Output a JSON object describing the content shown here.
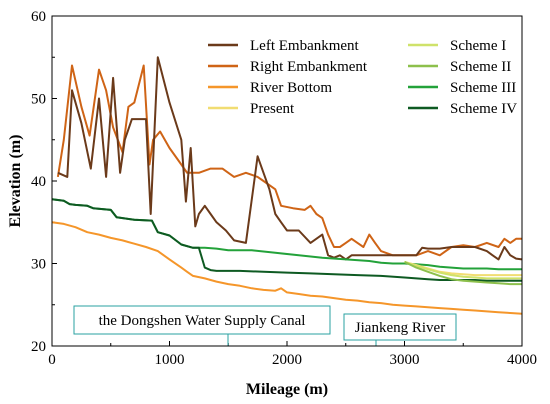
{
  "chart_data": {
    "type": "line",
    "xlabel": "Mileage (m)",
    "ylabel": "Elevation (m)",
    "xlim": [
      0,
      4000
    ],
    "ylim": [
      20,
      60
    ],
    "xticks": [
      0,
      1000,
      2000,
      3000,
      4000
    ],
    "yticks": [
      20,
      30,
      40,
      50,
      60
    ],
    "legend": "top-right, two columns",
    "series": [
      {
        "name": "Left Embankment",
        "color": "#6b3a1a",
        "x": [
          50,
          130,
          170,
          250,
          330,
          400,
          460,
          520,
          580,
          620,
          680,
          750,
          800,
          840,
          900,
          1000,
          1100,
          1140,
          1180,
          1220,
          1250,
          1300,
          1350,
          1400,
          1480,
          1550,
          1650,
          1750,
          1800,
          1850,
          1900,
          1950,
          2000,
          2100,
          2200,
          2300,
          2350,
          2400,
          2450,
          2500,
          2550,
          2600,
          2700,
          2800,
          2900,
          3000,
          3100,
          3150,
          3200,
          3300,
          3400,
          3500,
          3600,
          3700,
          3750,
          3800,
          3850,
          3900,
          3950,
          4000
        ],
        "y": [
          41,
          40.5,
          51,
          47,
          41.5,
          50,
          40.5,
          52.5,
          41,
          45,
          47.5,
          47.5,
          47.5,
          36,
          55,
          49.5,
          45,
          37.5,
          44,
          34.5,
          36,
          37,
          36,
          35,
          34,
          32.8,
          32.5,
          43,
          41,
          39,
          36,
          35,
          34,
          34,
          32.5,
          33.5,
          31,
          30.7,
          31,
          30.5,
          31,
          31,
          31,
          31,
          31,
          31,
          31,
          31.9,
          31.8,
          31.8,
          32,
          32,
          32,
          31.5,
          31,
          30.5,
          32,
          31,
          30.6,
          30.5
        ]
      },
      {
        "name": "Right Embankment",
        "color": "#cf6416",
        "x": [
          50,
          100,
          170,
          250,
          320,
          400,
          460,
          520,
          600,
          650,
          700,
          780,
          830,
          860,
          920,
          1000,
          1100,
          1150,
          1250,
          1350,
          1450,
          1500,
          1550,
          1650,
          1750,
          1800,
          1900,
          1950,
          2050,
          2150,
          2200,
          2250,
          2300,
          2350,
          2400,
          2450,
          2500,
          2550,
          2600,
          2650,
          2700,
          2750,
          2800,
          2900,
          3000,
          3100,
          3200,
          3300,
          3400,
          3500,
          3600,
          3700,
          3800,
          3850,
          3900,
          3950,
          4000
        ],
        "y": [
          40.5,
          45,
          54,
          49,
          45.5,
          53.5,
          51,
          46.5,
          43.5,
          49,
          49.5,
          54,
          42,
          45,
          46,
          44,
          42,
          41,
          41,
          41.5,
          41.5,
          41,
          40.5,
          41,
          40.5,
          40,
          39,
          37,
          36.7,
          36.5,
          37,
          36,
          35.5,
          33.5,
          32,
          32,
          32.5,
          33,
          32.5,
          32,
          33.5,
          32.5,
          31.5,
          31,
          31,
          31,
          31.5,
          31,
          32,
          32.2,
          32,
          32.5,
          32,
          33,
          32.5,
          33,
          33
        ]
      },
      {
        "name": "River Bottom",
        "color": "#f5962a",
        "x": [
          0,
          100,
          200,
          300,
          400,
          500,
          600,
          700,
          800,
          900,
          1000,
          1100,
          1150,
          1200,
          1300,
          1400,
          1500,
          1600,
          1700,
          1800,
          1900,
          1950,
          2000,
          2100,
          2200,
          2300,
          2400,
          2500,
          2600,
          2700,
          2800,
          2900,
          3000,
          3100,
          3200,
          3300,
          3400,
          3500,
          3600,
          3700,
          3800,
          3900,
          4000
        ],
        "y": [
          35,
          34.8,
          34.4,
          33.8,
          33.5,
          33.1,
          32.8,
          32.4,
          32,
          31.5,
          30.5,
          29.5,
          29,
          28.5,
          28.2,
          27.8,
          27.5,
          27.3,
          27,
          26.8,
          26.7,
          27,
          26.5,
          26.3,
          26.1,
          26,
          25.8,
          25.6,
          25.5,
          25.3,
          25.2,
          25,
          24.9,
          24.8,
          24.7,
          24.6,
          24.5,
          24.4,
          24.3,
          24.2,
          24.1,
          24,
          23.9
        ]
      },
      {
        "name": "Present",
        "color": "#f1dd72",
        "x": [
          3000,
          3100,
          3200,
          3300,
          3400,
          3500,
          3600,
          3700,
          3800,
          3900,
          4000
        ],
        "y": [
          30.2,
          29.8,
          29.4,
          29,
          28.8,
          28.7,
          28.6,
          28.6,
          28.6,
          28.6,
          28.6
        ]
      },
      {
        "name": "Scheme I",
        "color": "#cfe26a",
        "x": [
          3000,
          3100,
          3200,
          3300,
          3400,
          3500,
          3600,
          3700,
          3800,
          3900,
          4000
        ],
        "y": [
          30.2,
          29.7,
          29.3,
          28.9,
          28.6,
          28.4,
          28.3,
          28.2,
          28.2,
          28.2,
          28.2
        ]
      },
      {
        "name": "Scheme II",
        "color": "#8dc04c",
        "x": [
          3000,
          3100,
          3200,
          3300,
          3400,
          3500,
          3600,
          3700,
          3800,
          3900,
          4000
        ],
        "y": [
          30.2,
          29.5,
          29,
          28.5,
          28.1,
          27.9,
          27.8,
          27.7,
          27.6,
          27.5,
          27.5
        ]
      },
      {
        "name": "Scheme III",
        "color": "#23a23a",
        "x": [
          0,
          100,
          150,
          200,
          300,
          350,
          500,
          550,
          700,
          850,
          900,
          1000,
          1100,
          1200,
          1300,
          1400,
          1500,
          1700,
          1900,
          2100,
          2300,
          2500,
          2700,
          2800,
          2900,
          3000,
          3100,
          3200,
          3300,
          3400,
          3500,
          3600,
          3700,
          3800,
          3900,
          4000
        ],
        "y": [
          37.8,
          37.6,
          37.2,
          37.1,
          37,
          36.7,
          36.5,
          35.6,
          35.3,
          35.2,
          33.8,
          33.4,
          32.3,
          31.9,
          31.9,
          31.8,
          31.6,
          31.6,
          31.3,
          31,
          30.7,
          30.5,
          30.3,
          30.1,
          30,
          30,
          29.9,
          29.8,
          29.6,
          29.5,
          29.4,
          29.4,
          29.4,
          29.3,
          29.3,
          29.3
        ]
      },
      {
        "name": "Scheme IV",
        "color": "#0e5a22",
        "x": [
          0,
          100,
          150,
          200,
          300,
          350,
          500,
          550,
          700,
          850,
          900,
          1000,
          1100,
          1200,
          1250,
          1300,
          1350,
          1400,
          1600,
          1800,
          2000,
          2200,
          2400,
          2600,
          2800,
          3000,
          3100,
          3200,
          3300,
          3400,
          3500,
          3600,
          3700,
          3800,
          3900,
          4000
        ],
        "y": [
          37.8,
          37.6,
          37.2,
          37.1,
          37,
          36.7,
          36.5,
          35.6,
          35.3,
          35.2,
          33.8,
          33.4,
          32.3,
          31.9,
          31.9,
          29.5,
          29.2,
          29.1,
          29.1,
          29,
          28.9,
          28.8,
          28.7,
          28.6,
          28.5,
          28.3,
          28.2,
          28.1,
          28,
          28,
          28,
          28,
          27.9,
          27.9,
          27.9,
          27.9
        ]
      }
    ],
    "annotations": [
      {
        "text": "the Dongshen Water Supply Canal",
        "x": 1500,
        "y": 22.5
      },
      {
        "text": "Jiankeng River",
        "x": 2760,
        "y": 22
      }
    ]
  }
}
